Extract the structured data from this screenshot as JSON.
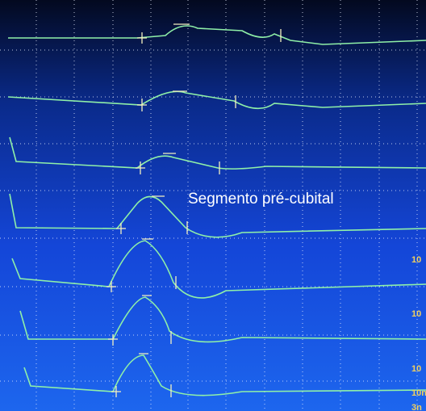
{
  "annotation": "Segmento pré-cubital",
  "right_labels": [
    "10",
    "10",
    "10",
    "10n",
    "3n"
  ]
}
